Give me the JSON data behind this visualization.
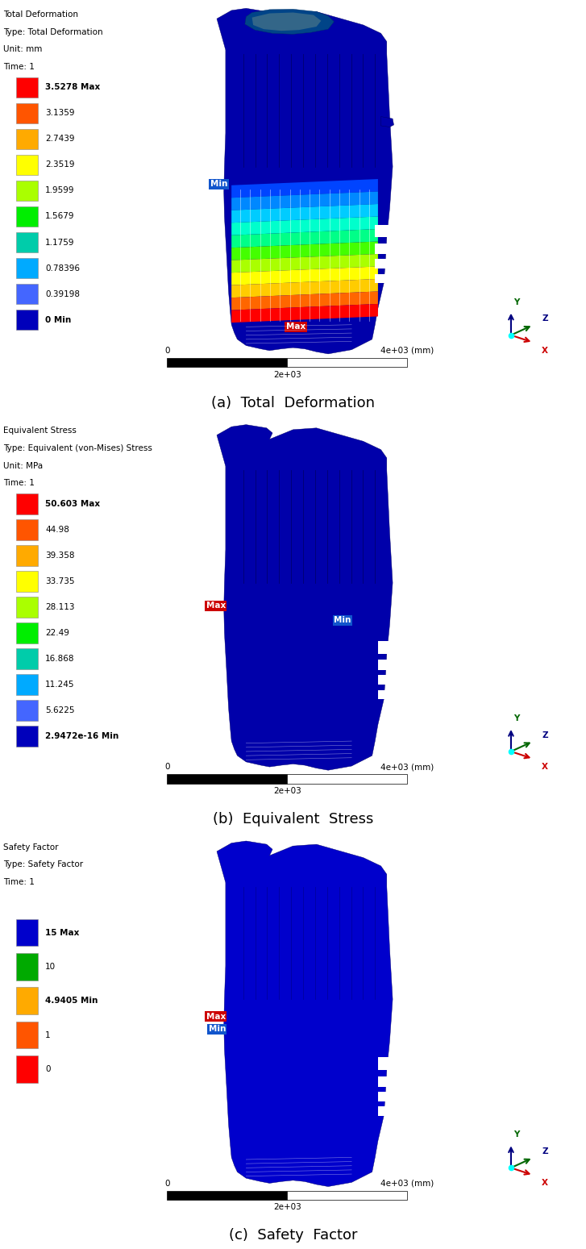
{
  "panel_a": {
    "title_lines": [
      "Total Deformation",
      "Type: Total Deformation",
      "Unit: mm",
      "Time: 1"
    ],
    "legend_values": [
      "3.5278 Max",
      "3.1359",
      "2.7439",
      "2.3519",
      "1.9599",
      "1.5679",
      "1.1759",
      "0.78396",
      "0.39198",
      "0 Min"
    ],
    "legend_colors": [
      "#ff0000",
      "#ff5500",
      "#ffaa00",
      "#ffff00",
      "#aaff00",
      "#00ee00",
      "#00ccaa",
      "#00aaff",
      "#4466ff",
      "#0000bb"
    ],
    "bold_entries": [
      0,
      9
    ],
    "caption": "(a)  Total  Deformation"
  },
  "panel_b": {
    "title_lines": [
      "Equivalent Stress",
      "Type: Equivalent (von-Mises) Stress",
      "Unit: MPa",
      "Time: 1"
    ],
    "legend_values": [
      "50.603 Max",
      "44.98",
      "39.358",
      "33.735",
      "28.113",
      "22.49",
      "16.868",
      "11.245",
      "5.6225",
      "2.9472e-16 Min"
    ],
    "legend_colors": [
      "#ff0000",
      "#ff5500",
      "#ffaa00",
      "#ffff00",
      "#aaff00",
      "#00ee00",
      "#00ccaa",
      "#00aaff",
      "#4466ff",
      "#0000bb"
    ],
    "bold_entries": [
      0,
      9
    ],
    "caption": "(b)  Equivalent  Stress"
  },
  "panel_c": {
    "title_lines": [
      "Safety Factor",
      "Type: Safety Factor",
      "Time: 1"
    ],
    "legend_values": [
      "15 Max",
      "10",
      "4.9405 Min",
      "1",
      "0"
    ],
    "legend_colors": [
      "#0000cc",
      "#00aa00",
      "#ffaa00",
      "#ff5500",
      "#ff0000"
    ],
    "bold_entries": [
      0,
      2
    ],
    "caption": "(c)  Safety  Factor"
  },
  "bg_color": "#ffffff",
  "text_color": "#000000",
  "title_fontsize": 7.5,
  "caption_fontsize": 13,
  "scale_left": "0",
  "scale_right": "4e+03 (mm)",
  "scale_mid": "2e+03"
}
